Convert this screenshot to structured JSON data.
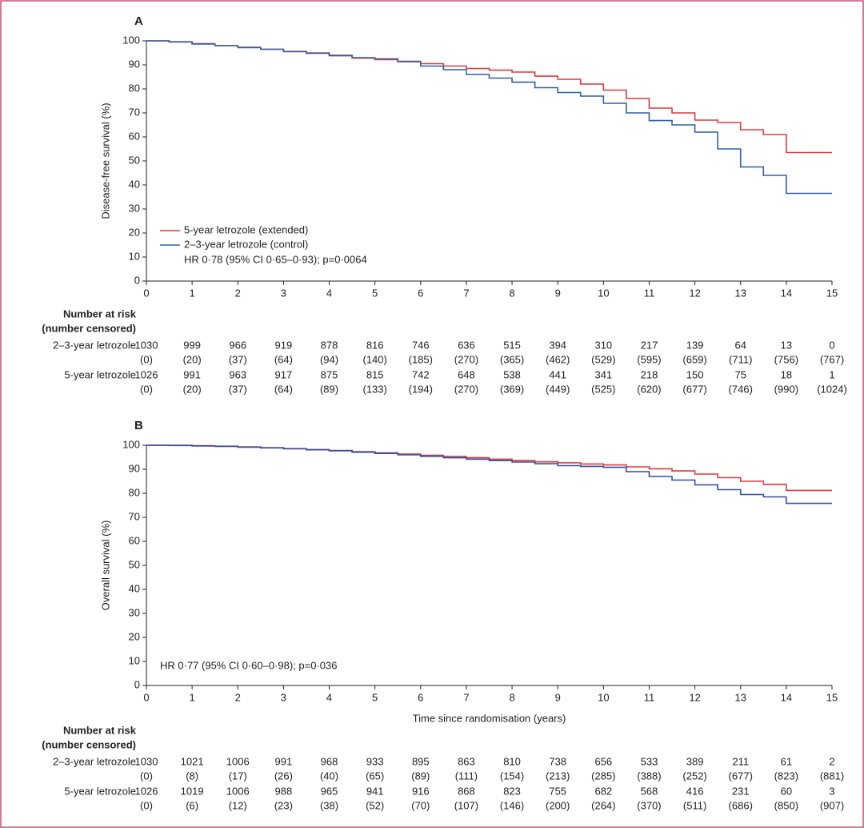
{
  "chart_data": [
    {
      "type": "line",
      "panel": "A",
      "ylabel": "Disease-free survival (%)",
      "x": [
        0,
        0.5,
        1,
        1.5,
        2,
        2.5,
        3,
        3.5,
        4,
        4.5,
        5,
        5.5,
        6,
        6.5,
        7,
        7.5,
        8,
        8.5,
        9,
        9.5,
        10,
        10.5,
        11,
        11.5,
        12,
        12.5,
        13,
        13.5,
        14,
        14.5,
        15
      ],
      "series": [
        {
          "name": "5-year letrozole (extended)",
          "color": "#e0393a",
          "values": [
            100,
            99.5,
            98.8,
            98,
            97.3,
            96.5,
            95.6,
            95,
            94,
            92.8,
            92.2,
            91.5,
            90.5,
            89.5,
            88.5,
            87.8,
            87,
            85.3,
            84,
            82,
            79.5,
            76,
            72,
            70,
            67,
            66,
            63,
            61,
            53.5,
            53.5,
            53.5
          ]
        },
        {
          "name": "2–3-year letrozole (control)",
          "color": "#2f5fa5",
          "values": [
            100,
            99.6,
            98.7,
            98,
            97.2,
            96.5,
            95.5,
            94.8,
            93.8,
            93,
            92.5,
            91.3,
            89.5,
            88,
            86,
            84.5,
            82.8,
            80.5,
            78.5,
            77,
            74,
            70,
            66.8,
            65,
            62,
            55,
            47.5,
            44,
            36.5,
            36.5,
            36.5
          ]
        }
      ],
      "annotation": "HR 0·78 (95% CI 0·65–0·93); p=0·0064",
      "legend": true,
      "step": true,
      "xlim": [
        0,
        15
      ],
      "xticks": [
        0,
        1,
        2,
        3,
        4,
        5,
        6,
        7,
        8,
        9,
        10,
        11,
        12,
        13,
        14,
        15
      ],
      "ylim": [
        0,
        100
      ],
      "yticks": [
        0,
        10,
        20,
        30,
        40,
        50,
        60,
        70,
        80,
        90,
        100
      ],
      "grid": false,
      "risk_table": {
        "title": "Number at risk",
        "subtitle": "(number censored)",
        "rows": [
          {
            "label": "2–3-year letrozole",
            "at_risk": [
              1030,
              999,
              966,
              919,
              878,
              816,
              746,
              636,
              515,
              394,
              310,
              217,
              139,
              64,
              13,
              0
            ],
            "censored": [
              "(0)",
              "(20)",
              "(37)",
              "(64)",
              "(94)",
              "(140)",
              "(185)",
              "(270)",
              "(365)",
              "(462)",
              "(529)",
              "(595)",
              "(659)",
              "(711)",
              "(756)",
              "(767)"
            ]
          },
          {
            "label": "5-year letrozole",
            "at_risk": [
              1026,
              991,
              963,
              917,
              875,
              815,
              742,
              648,
              538,
              441,
              341,
              218,
              150,
              75,
              18,
              1
            ],
            "censored": [
              "(0)",
              "(20)",
              "(37)",
              "(64)",
              "(89)",
              "(133)",
              "(194)",
              "(270)",
              "(369)",
              "(449)",
              "(525)",
              "(620)",
              "(677)",
              "(746)",
              "(990)",
              "(1024)"
            ]
          }
        ]
      }
    },
    {
      "type": "line",
      "panel": "B",
      "ylabel": "Overall survival (%)",
      "xlabel": "Time since randomisation (years)",
      "x": [
        0,
        0.5,
        1,
        1.5,
        2,
        2.5,
        3,
        3.5,
        4,
        4.5,
        5,
        5.5,
        6,
        6.5,
        7,
        7.5,
        8,
        8.5,
        9,
        9.5,
        10,
        10.5,
        11,
        11.5,
        12,
        12.5,
        13,
        13.5,
        14,
        14.5,
        15
      ],
      "series": [
        {
          "color": "#e0393a",
          "values": [
            100,
            100,
            99.8,
            99.6,
            99.3,
            99,
            98.6,
            98.2,
            97.8,
            97.3,
            96.8,
            96.3,
            95.8,
            95.3,
            94.8,
            94.2,
            93.6,
            93.1,
            92.7,
            92.2,
            91.8,
            91,
            90.2,
            89.3,
            88,
            86.5,
            85,
            83.7,
            81.2,
            81.2,
            81.2
          ]
        },
        {
          "color": "#2f4fa8",
          "values": [
            100,
            99.9,
            99.7,
            99.5,
            99.2,
            98.9,
            98.5,
            98.1,
            97.7,
            97.1,
            96.6,
            96,
            95.4,
            94.8,
            94.2,
            93.6,
            93,
            92.3,
            91.5,
            91.2,
            90.8,
            89,
            87,
            85.5,
            83.5,
            81.5,
            79.5,
            78.5,
            75.8,
            75.8,
            75.8
          ]
        }
      ],
      "annotation": "HR 0·77 (95% CI 0·60–0·98); p=0·036",
      "legend": false,
      "step": true,
      "xlim": [
        0,
        15
      ],
      "xticks": [
        0,
        1,
        2,
        3,
        4,
        5,
        6,
        7,
        8,
        9,
        10,
        11,
        12,
        13,
        14,
        15
      ],
      "ylim": [
        0,
        100
      ],
      "yticks": [
        0,
        10,
        20,
        30,
        40,
        50,
        60,
        70,
        80,
        90,
        100
      ],
      "grid": false,
      "risk_table": {
        "title": "Number at risk",
        "subtitle": "(number censored)",
        "rows": [
          {
            "label": "2–3-year letrozole",
            "at_risk": [
              1030,
              1021,
              1006,
              991,
              968,
              933,
              895,
              863,
              810,
              738,
              656,
              533,
              389,
              211,
              61,
              2
            ],
            "censored": [
              "(0)",
              "(8)",
              "(17)",
              "(26)",
              "(40)",
              "(65)",
              "(89)",
              "(111)",
              "(154)",
              "(213)",
              "(285)",
              "(388)",
              "(252)",
              "(677)",
              "(823)",
              "(881)"
            ]
          },
          {
            "label": "5-year letrozole",
            "at_risk": [
              1026,
              1019,
              1006,
              988,
              965,
              941,
              916,
              868,
              823,
              755,
              682,
              568,
              416,
              231,
              60,
              3
            ],
            "censored": [
              "(0)",
              "(6)",
              "(12)",
              "(23)",
              "(38)",
              "(52)",
              "(70)",
              "(107)",
              "(146)",
              "(200)",
              "(264)",
              "(370)",
              "(511)",
              "(686)",
              "(850)",
              "(907)"
            ]
          }
        ]
      }
    }
  ]
}
